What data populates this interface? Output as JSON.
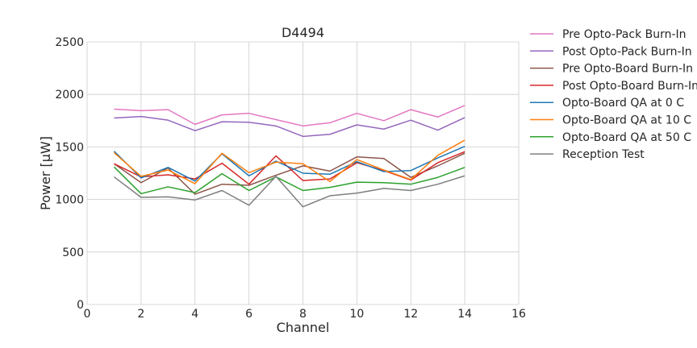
{
  "chart_data": {
    "type": "line",
    "title": "D4494",
    "xlabel": "Channel",
    "ylabel": "Power [μW]",
    "xlim": [
      0,
      16
    ],
    "ylim": [
      0,
      2500
    ],
    "xticks": [
      0,
      2,
      4,
      6,
      8,
      10,
      12,
      14,
      16
    ],
    "yticks": [
      0,
      500,
      1000,
      1500,
      2000,
      2500
    ],
    "grid": true,
    "legend_position": "outside-right",
    "x": [
      1,
      2,
      3,
      4,
      5,
      6,
      7,
      8,
      9,
      10,
      11,
      12,
      13,
      14
    ],
    "series": [
      {
        "name": "Pre Opto-Pack Burn-In",
        "color": "#e377c2",
        "values": [
          1860,
          1845,
          1855,
          1715,
          1805,
          1820,
          1760,
          1700,
          1730,
          1820,
          1750,
          1855,
          1785,
          1895
        ]
      },
      {
        "name": "Post Opto-Pack Burn-In",
        "color": "#9467bd",
        "values": [
          1775,
          1790,
          1755,
          1655,
          1740,
          1735,
          1700,
          1600,
          1620,
          1710,
          1670,
          1755,
          1660,
          1780
        ]
      },
      {
        "name": "Pre Opto-Board Burn-In",
        "color": "#8c564b",
        "values": [
          1340,
          1160,
          1300,
          1050,
          1145,
          1135,
          1230,
          1320,
          1270,
          1405,
          1390,
          1210,
          1320,
          1440
        ]
      },
      {
        "name": "Post Opto-Board Burn-In",
        "color": "#d62728",
        "values": [
          1340,
          1215,
          1235,
          1195,
          1345,
          1145,
          1415,
          1180,
          1195,
          1350,
          1275,
          1185,
          1350,
          1455
        ]
      },
      {
        "name": "Opto-Board QA at 0 C",
        "color": "#1f77b4",
        "values": [
          1460,
          1205,
          1305,
          1175,
          1435,
          1225,
          1365,
          1250,
          1240,
          1360,
          1265,
          1275,
          1395,
          1505
        ]
      },
      {
        "name": "Opto-Board QA at 10 C",
        "color": "#ff7f0e",
        "values": [
          1445,
          1220,
          1280,
          1150,
          1440,
          1255,
          1355,
          1340,
          1170,
          1380,
          1280,
          1190,
          1420,
          1565
        ]
      },
      {
        "name": "Opto-Board QA at 50 C",
        "color": "#2ca02c",
        "values": [
          1310,
          1055,
          1120,
          1065,
          1245,
          1085,
          1215,
          1085,
          1115,
          1165,
          1160,
          1145,
          1210,
          1305
        ]
      },
      {
        "name": "Reception Test",
        "color": "#7f7f7f",
        "values": [
          1215,
          1020,
          1025,
          995,
          1085,
          945,
          1220,
          930,
          1035,
          1060,
          1105,
          1085,
          1145,
          1225
        ]
      }
    ]
  }
}
